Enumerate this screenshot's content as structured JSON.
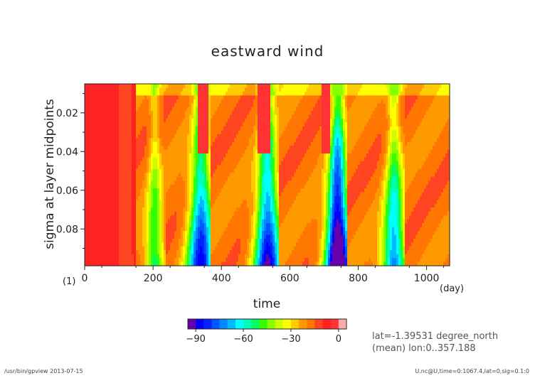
{
  "chart_data": {
    "type": "heatmap",
    "title": "eastward wind",
    "xlabel": "time",
    "x_unit": "(day)",
    "ylabel": "sigma at layer midpoints",
    "y_unit": "(1)",
    "xlim": [
      0,
      1067.4
    ],
    "ylim": [
      0.005,
      0.099
    ],
    "y_inverted": true,
    "x_ticks": [
      0,
      200,
      400,
      600,
      800,
      1000
    ],
    "y_ticks": [
      0.02,
      0.04,
      0.06,
      0.08
    ],
    "colorbar": {
      "levels": [
        -95,
        -90,
        -85,
        -80,
        -75,
        -70,
        -65,
        -60,
        -55,
        -50,
        -45,
        -40,
        -35,
        -30,
        -25,
        -20,
        -15,
        -10,
        -5,
        0,
        5
      ],
      "colors": [
        "#6600aa",
        "#0000ff",
        "#0022ff",
        "#0055ff",
        "#0088ff",
        "#00bbff",
        "#00ffff",
        "#00ffbb",
        "#00ff66",
        "#33ff00",
        "#88ff00",
        "#ccff00",
        "#ffff00",
        "#ffcc00",
        "#ff9900",
        "#ff7700",
        "#ff4422",
        "#ff2222",
        "#ff3333",
        "#ffaaaa"
      ],
      "tick_labels": [
        "−90",
        "−60",
        "−30",
        "0"
      ]
    },
    "description_fields": {
      "field_min_approx": -95,
      "field_max_approx": 2
    }
  },
  "info": {
    "line1": "lat=-1.39531 degree_north",
    "line2": "(mean) lon:0..357.188"
  },
  "footer": {
    "left": "/usr/bin/gpview  2013-07-15",
    "right": "U.nc@U,time=0:1067.4,lat=0,sig=0.1:0"
  }
}
